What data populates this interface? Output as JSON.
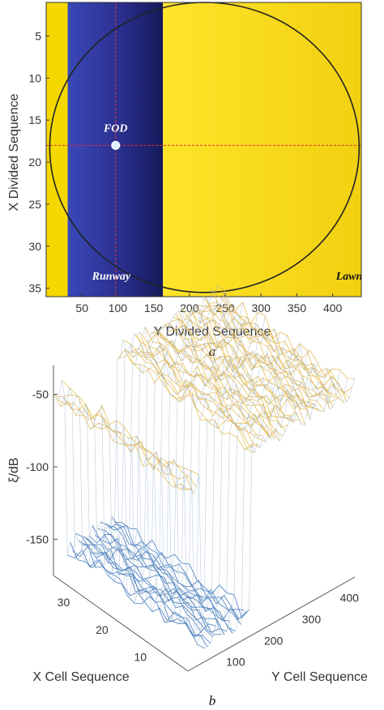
{
  "chart_data": [
    {
      "type": "heatmap",
      "caption": "a",
      "xlabel": "Y Divided Sequence",
      "ylabel": "X Divided Sequence",
      "xlim": [
        0,
        440
      ],
      "ylim": [
        36,
        1
      ],
      "x_ticks": [
        50,
        100,
        150,
        200,
        250,
        300,
        350,
        400
      ],
      "y_ticks": [
        5,
        10,
        15,
        20,
        25,
        30,
        35
      ],
      "y_reversed": true,
      "grid": false,
      "regions": [
        {
          "name": "Lawn",
          "y_from": 0,
          "y_to": 30,
          "color": "#f5d800"
        },
        {
          "name": "Runway",
          "y_from": 30,
          "y_to": 163,
          "color": "#2b2f8c"
        },
        {
          "name": "Lawn",
          "y_from": 163,
          "y_to": 440,
          "color": "#f8dc18"
        }
      ],
      "annotations": [
        {
          "text": "FOD",
          "x": 97,
          "y": 18,
          "marker": "circle"
        },
        {
          "text": "Runway",
          "x": 100,
          "y": 33.5
        },
        {
          "text": "Lawn",
          "x": 405,
          "y": 33.5
        }
      ],
      "crosshair": {
        "x": 97,
        "y": 18,
        "color": "#e03030"
      },
      "boundary": {
        "shape": "ellipse",
        "x_range": [
          5,
          437
        ],
        "y_range": [
          1,
          35.5
        ],
        "color": "#222222"
      }
    },
    {
      "type": "surface",
      "caption": "b",
      "xlabel": "X Cell Sequence",
      "ylabel": "Y Cell Sequence",
      "zlabel": "ξ/dB",
      "x_ticks": [
        10,
        20,
        30
      ],
      "y_ticks": [
        100,
        200,
        300,
        400
      ],
      "z_ticks": [
        -50,
        -100,
        -150
      ],
      "xlim": [
        1,
        36
      ],
      "ylim": [
        0,
        440
      ],
      "zlim": [
        -175,
        -30
      ],
      "grid": false,
      "series": [
        {
          "name": "Lawn",
          "y_from": 0,
          "y_to": 30,
          "z_mean": -50,
          "color": "#e6b84a"
        },
        {
          "name": "Runway",
          "y_from": 30,
          "y_to": 163,
          "z_mean": -160,
          "color": "#2f6db8"
        },
        {
          "name": "Lawn",
          "y_from": 163,
          "y_to": 440,
          "z_mean": -45,
          "color": "#e6b84a"
        }
      ]
    }
  ]
}
